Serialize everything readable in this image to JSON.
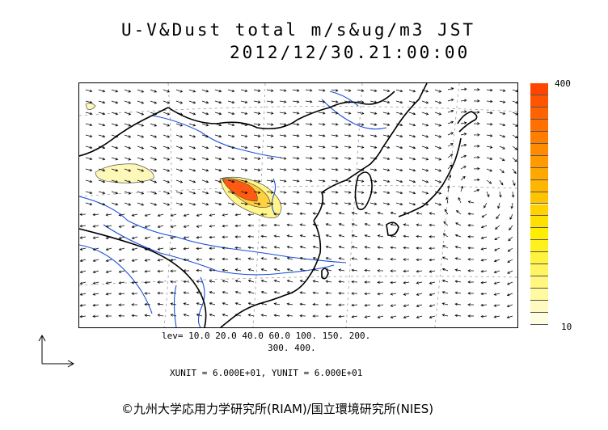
{
  "title": {
    "main": "U-V&Dust total m/s&ug/m3 JST",
    "time": "2012/12/30.21:00:00"
  },
  "colorbar": {
    "max_label": "400",
    "min_label": "10",
    "colors": [
      "#fffde0",
      "#fffbc0",
      "#fff9a0",
      "#fff780",
      "#fff560",
      "#fff340",
      "#fff020",
      "#ffee00",
      "#ffe000",
      "#ffd200",
      "#ffc400",
      "#ffb600",
      "#ffa800",
      "#ff9a00",
      "#ff8c00",
      "#ff7e00",
      "#ff7000",
      "#ff6200",
      "#ff5400",
      "#ff4600"
    ]
  },
  "levels": {
    "line1": "lev= 10.0 20.0 40.0 60.0 100. 150. 200.",
    "line2": "300. 400."
  },
  "units": "XUNIT = 6.000E+01, YUNIT = 6.000E+01",
  "copyright": "©九州大学応用力学研究所(RIAM)/国立環境研究所(NIES)",
  "map_colors": {
    "coast": "#000000",
    "river": "#1a4fd8",
    "dust_low": "#fdf7b0",
    "dust_high": "#ff5500",
    "vector": "#000000",
    "grid": "#888888"
  }
}
